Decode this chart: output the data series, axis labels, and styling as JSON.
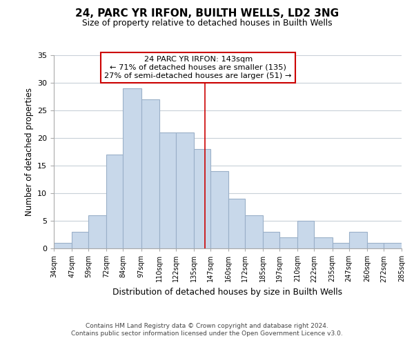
{
  "title": "24, PARC YR IRFON, BUILTH WELLS, LD2 3NG",
  "subtitle": "Size of property relative to detached houses in Builth Wells",
  "xlabel": "Distribution of detached houses by size in Builth Wells",
  "ylabel": "Number of detached properties",
  "bar_color": "#c8d8ea",
  "bar_edge_color": "#9ab0c8",
  "bins": [
    34,
    47,
    59,
    72,
    84,
    97,
    110,
    122,
    135,
    147,
    160,
    172,
    185,
    197,
    210,
    222,
    235,
    247,
    260,
    272,
    285
  ],
  "counts": [
    1,
    3,
    6,
    17,
    29,
    27,
    21,
    21,
    18,
    14,
    9,
    6,
    3,
    2,
    5,
    2,
    1,
    3,
    1,
    1
  ],
  "tick_labels": [
    "34sqm",
    "47sqm",
    "59sqm",
    "72sqm",
    "84sqm",
    "97sqm",
    "110sqm",
    "122sqm",
    "135sqm",
    "147sqm",
    "160sqm",
    "172sqm",
    "185sqm",
    "197sqm",
    "210sqm",
    "222sqm",
    "235sqm",
    "247sqm",
    "260sqm",
    "272sqm",
    "285sqm"
  ],
  "property_size": 143,
  "annotation_title": "24 PARC YR IRFON: 143sqm",
  "annotation_line1": "← 71% of detached houses are smaller (135)",
  "annotation_line2": "27% of semi-detached houses are larger (51) →",
  "vline_color": "#cc0000",
  "annotation_box_edge_color": "#cc0000",
  "ylim": [
    0,
    35
  ],
  "yticks": [
    0,
    5,
    10,
    15,
    20,
    25,
    30,
    35
  ],
  "footer_line1": "Contains HM Land Registry data © Crown copyright and database right 2024.",
  "footer_line2": "Contains public sector information licensed under the Open Government Licence v3.0.",
  "background_color": "#ffffff",
  "grid_color": "#c8d0d8"
}
